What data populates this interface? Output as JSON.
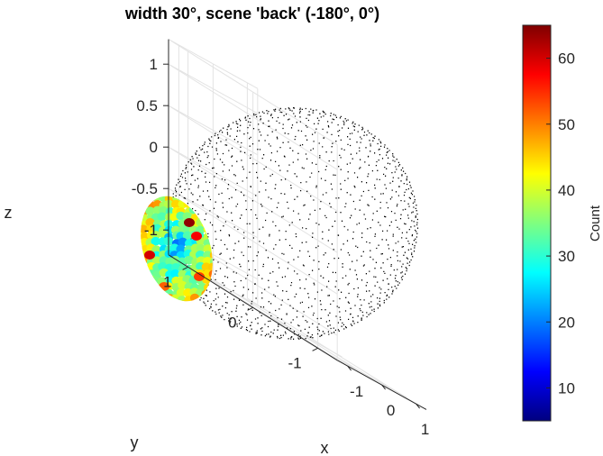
{
  "chart_data": {
    "type": "scatter",
    "title": "width 30°, scene 'back' (-180°, 0°)",
    "xlabel": "x",
    "ylabel": "y",
    "zlabel": "z",
    "x_ticks": [
      "-1",
      "0",
      "1"
    ],
    "y_ticks": [
      "-1",
      "0",
      "1"
    ],
    "z_ticks": [
      "1",
      "0.5",
      "0",
      "-0.5",
      "-1"
    ],
    "xlim": [
      -1.3,
      1.3
    ],
    "ylim": [
      -1.3,
      1.3
    ],
    "zlim": [
      -1.3,
      1.3
    ],
    "grid": true,
    "sphere_radius": 1,
    "view_direction_deg": {
      "azimuth": -180,
      "elevation": 0
    },
    "patch_half_width_deg": 30,
    "colorbar": {
      "label": "Count",
      "ticks": [
        10,
        20,
        30,
        40,
        50,
        60
      ],
      "range": [
        5,
        65
      ],
      "colormap": [
        "#00007f",
        "#0000ff",
        "#007fff",
        "#00ffff",
        "#7fff7f",
        "#ffff00",
        "#ff7f00",
        "#ff0000",
        "#7f0000"
      ]
    }
  }
}
